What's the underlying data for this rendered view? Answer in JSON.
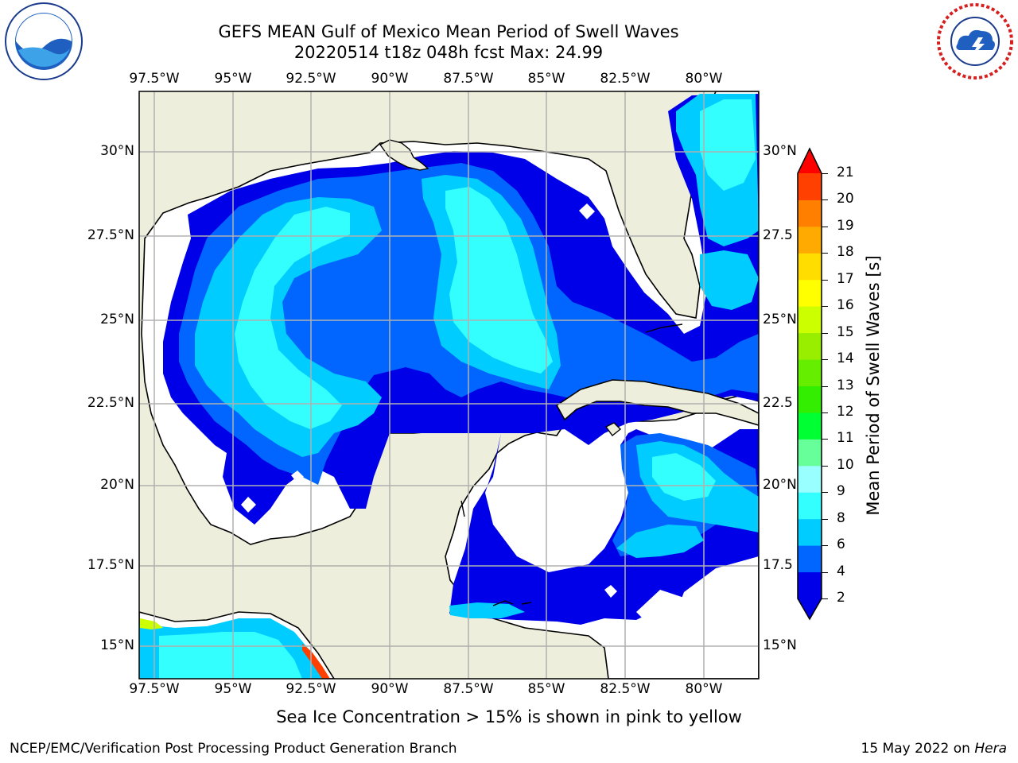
{
  "header": {
    "title_line1": "GEFS MEAN Gulf of Mexico Mean Period of Swell Waves",
    "title_line2": "20220514 t18z 048h fcst   Max: 24.99"
  },
  "logos": {
    "left": {
      "name": "noaa-logo",
      "text": "NOAA",
      "ring_text": "NATIONAL OCEANIC AND ATMOSPHERIC ADMINISTRATION · U.S. DEPARTMENT OF COMMERCE"
    },
    "right": {
      "name": "nws-logo",
      "ring_text": "NATIONAL WEATHER SERVICE"
    }
  },
  "map": {
    "extent": {
      "lon": [
        -98.5,
        -78.7
      ],
      "lat": [
        14,
        31.5
      ]
    },
    "lon_ticks": [
      "97.5°W",
      "95°W",
      "92.5°W",
      "90°W",
      "87.5°W",
      "85°W",
      "82.5°W",
      "80°W"
    ],
    "lat_ticks_left": [
      "30°N",
      "27.5°N",
      "25°N",
      "22.5°N",
      "20°N",
      "17.5°N",
      "15°N"
    ],
    "lat_ticks_right": [
      "30°N",
      "27.5",
      "25°N",
      "22.5",
      "20°N",
      "17.5",
      "15°N"
    ],
    "colors": {
      "land": "#eeeedc",
      "no_data": "#ffffff",
      "grid": "#b0b0b0"
    }
  },
  "colorbar": {
    "label": "Mean Period of Swell Waves [s]",
    "ticks": [
      "21",
      "20",
      "19",
      "18",
      "17",
      "16",
      "15",
      "14",
      "13",
      "12",
      "11",
      "10",
      "9",
      "8",
      "6",
      "4",
      "2"
    ],
    "levels": [
      2,
      4,
      6,
      8,
      9,
      10,
      11,
      12,
      13,
      14,
      15,
      16,
      17,
      18,
      19,
      20,
      21
    ],
    "colors": [
      "#0000e8",
      "#0066ff",
      "#00ccff",
      "#33ffff",
      "#99ffff",
      "#66ff99",
      "#00ff33",
      "#33ee00",
      "#66ee00",
      "#99ee00",
      "#ccff00",
      "#ffff00",
      "#ffdd00",
      "#ffaa00",
      "#ff8000",
      "#ff4000",
      "#ff0000"
    ],
    "under_color": "#0000e8",
    "over_color": "#ff0000"
  },
  "note": "Sea Ice Concentration > 15% is shown in pink to yellow",
  "footer": {
    "left": "NCEP/EMC/Verification Post Processing Product Generation Branch",
    "right_prefix": "15 May 2022 on ",
    "right_machine": "Hera"
  }
}
